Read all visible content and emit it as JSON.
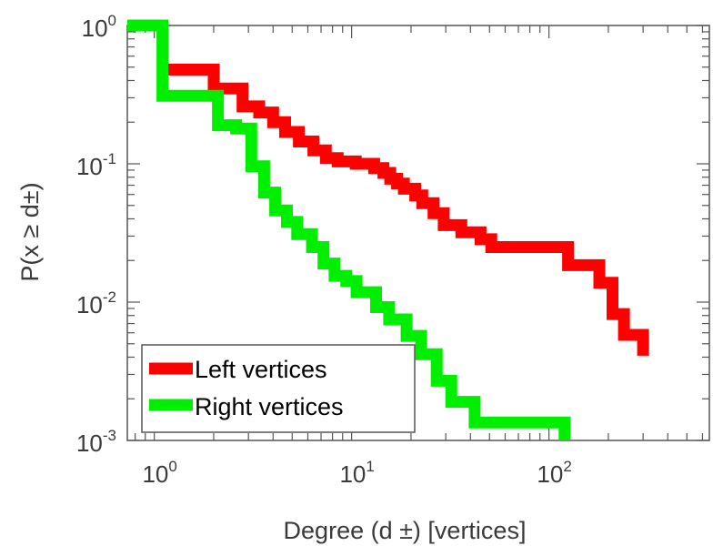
{
  "chart_data": {
    "type": "line",
    "step": true,
    "xscale": "log",
    "yscale": "log",
    "xlim": [
      0.73,
      650
    ],
    "ylim": [
      0.001,
      1.0
    ],
    "grid": false,
    "legend_position": "bottom-left",
    "xlabel": "Degree (d ±) [vertices]",
    "ylabel": "P(x ≥ d±)",
    "x_ticks": [
      {
        "value": 1,
        "base": "10",
        "exp": "0"
      },
      {
        "value": 10,
        "base": "10",
        "exp": "1"
      },
      {
        "value": 100,
        "base": "10",
        "exp": "2"
      }
    ],
    "y_ticks": [
      {
        "value": 1,
        "base": "10",
        "exp": "0"
      },
      {
        "value": 0.1,
        "base": "10",
        "exp": "-1"
      },
      {
        "value": 0.01,
        "base": "10",
        "exp": "-2"
      },
      {
        "value": 0.001,
        "base": "10",
        "exp": "-3"
      }
    ],
    "series": [
      {
        "name": "Left vertices",
        "color": "#ff0000",
        "points": [
          [
            1.05,
            0.48
          ],
          [
            2,
            0.48
          ],
          [
            2,
            0.35
          ],
          [
            2.8,
            0.35
          ],
          [
            2.8,
            0.26
          ],
          [
            3.4,
            0.26
          ],
          [
            3.4,
            0.235
          ],
          [
            4,
            0.235
          ],
          [
            4,
            0.2
          ],
          [
            4.6,
            0.2
          ],
          [
            4.6,
            0.17
          ],
          [
            5.4,
            0.17
          ],
          [
            5.4,
            0.145
          ],
          [
            6.4,
            0.145
          ],
          [
            6.4,
            0.125
          ],
          [
            7.4,
            0.125
          ],
          [
            7.4,
            0.11
          ],
          [
            8.5,
            0.11
          ],
          [
            8.5,
            0.104
          ],
          [
            10.5,
            0.104
          ],
          [
            10.5,
            0.1
          ],
          [
            13,
            0.1
          ],
          [
            13,
            0.093
          ],
          [
            14.5,
            0.093
          ],
          [
            14.5,
            0.086
          ],
          [
            15.7,
            0.086
          ],
          [
            15.7,
            0.078
          ],
          [
            17,
            0.078
          ],
          [
            17,
            0.072
          ],
          [
            18.4,
            0.072
          ],
          [
            18.4,
            0.066
          ],
          [
            21,
            0.066
          ],
          [
            21,
            0.059
          ],
          [
            22.8,
            0.059
          ],
          [
            22.8,
            0.052
          ],
          [
            26,
            0.052
          ],
          [
            26,
            0.044
          ],
          [
            29.3,
            0.044
          ],
          [
            29.3,
            0.036
          ],
          [
            36,
            0.036
          ],
          [
            36,
            0.032
          ],
          [
            45,
            0.032
          ],
          [
            45,
            0.0285
          ],
          [
            51,
            0.0285
          ],
          [
            51,
            0.025
          ],
          [
            125,
            0.025
          ],
          [
            125,
            0.0185
          ],
          [
            180,
            0.0185
          ],
          [
            180,
            0.0138
          ],
          [
            210,
            0.0138
          ],
          [
            210,
            0.0082
          ],
          [
            240,
            0.0082
          ],
          [
            240,
            0.0058
          ],
          [
            300,
            0.0058
          ],
          [
            300,
            0.0041
          ]
        ]
      },
      {
        "name": "Right vertices",
        "color": "#00ee00",
        "points": [
          [
            0.73,
            1.0
          ],
          [
            1.1,
            1.0
          ],
          [
            1.1,
            0.31
          ],
          [
            2.1,
            0.31
          ],
          [
            2.1,
            0.19
          ],
          [
            2.6,
            0.19
          ],
          [
            2.6,
            0.18
          ],
          [
            3.1,
            0.18
          ],
          [
            3.1,
            0.096
          ],
          [
            3.6,
            0.096
          ],
          [
            3.6,
            0.062
          ],
          [
            4.1,
            0.062
          ],
          [
            4.1,
            0.046
          ],
          [
            4.7,
            0.046
          ],
          [
            4.7,
            0.038
          ],
          [
            5.3,
            0.038
          ],
          [
            5.3,
            0.031
          ],
          [
            6.3,
            0.031
          ],
          [
            6.3,
            0.025
          ],
          [
            7.2,
            0.025
          ],
          [
            7.2,
            0.019
          ],
          [
            8.2,
            0.019
          ],
          [
            8.2,
            0.0155
          ],
          [
            9.4,
            0.0155
          ],
          [
            9.4,
            0.0142
          ],
          [
            10.6,
            0.0142
          ],
          [
            10.6,
            0.0118
          ],
          [
            13.3,
            0.0118
          ],
          [
            13.3,
            0.0092
          ],
          [
            15.5,
            0.0092
          ],
          [
            15.5,
            0.0075
          ],
          [
            19,
            0.0075
          ],
          [
            19,
            0.0057
          ],
          [
            22.5,
            0.0057
          ],
          [
            22.5,
            0.0042
          ],
          [
            27,
            0.0042
          ],
          [
            27,
            0.0027
          ],
          [
            32,
            0.0027
          ],
          [
            32,
            0.0019
          ],
          [
            42,
            0.0019
          ],
          [
            42,
            0.00135
          ],
          [
            120,
            0.00135
          ],
          [
            120,
            0.001
          ]
        ]
      }
    ]
  }
}
